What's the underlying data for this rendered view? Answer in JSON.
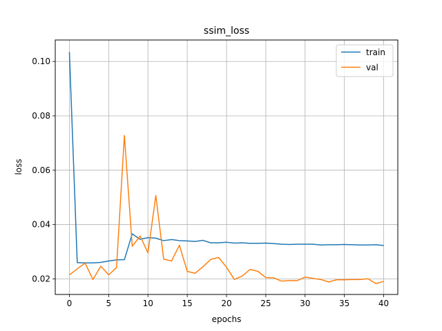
{
  "chart_data": {
    "type": "line",
    "title": "ssim_loss",
    "xlabel": "epochs",
    "ylabel": "loss",
    "xlim": [
      -1.8,
      41.8
    ],
    "ylim": [
      0.0143,
      0.1079
    ],
    "xticks": [
      0,
      5,
      10,
      15,
      20,
      25,
      30,
      35,
      40
    ],
    "yticks": [
      0.02,
      0.04,
      0.06,
      0.08,
      0.1
    ],
    "ytick_labels": [
      "0.02",
      "0.04",
      "0.06",
      "0.08",
      "0.10"
    ],
    "grid": true,
    "legend_position": "top-right",
    "x": [
      0,
      1,
      2,
      3,
      4,
      5,
      6,
      7,
      8,
      9,
      10,
      11,
      12,
      13,
      14,
      15,
      16,
      17,
      18,
      19,
      20,
      21,
      22,
      23,
      24,
      25,
      26,
      27,
      28,
      29,
      30,
      31,
      32,
      33,
      34,
      35,
      36,
      37,
      38,
      39,
      40
    ],
    "series": [
      {
        "name": "train",
        "color": "#1f77b4",
        "values": [
          0.1035,
          0.026,
          0.0259,
          0.0259,
          0.0261,
          0.0266,
          0.027,
          0.0271,
          0.0366,
          0.0346,
          0.0352,
          0.035,
          0.0341,
          0.0345,
          0.0341,
          0.034,
          0.0338,
          0.0342,
          0.0333,
          0.0333,
          0.0335,
          0.0332,
          0.0333,
          0.0331,
          0.0331,
          0.0332,
          0.033,
          0.0328,
          0.0327,
          0.0328,
          0.0328,
          0.0328,
          0.0325,
          0.0326,
          0.0326,
          0.0327,
          0.0326,
          0.0325,
          0.0325,
          0.0326,
          0.0323
        ]
      },
      {
        "name": "val",
        "color": "#ff7f0e",
        "values": [
          0.0215,
          0.0237,
          0.0258,
          0.0198,
          0.0247,
          0.0215,
          0.0242,
          0.0728,
          0.032,
          0.0358,
          0.0296,
          0.0507,
          0.0273,
          0.0266,
          0.0324,
          0.0228,
          0.0221,
          0.0245,
          0.0272,
          0.0279,
          0.0243,
          0.0198,
          0.0211,
          0.0235,
          0.0228,
          0.0205,
          0.0204,
          0.0192,
          0.0194,
          0.0194,
          0.0207,
          0.0202,
          0.0198,
          0.0189,
          0.0197,
          0.0197,
          0.0198,
          0.0198,
          0.0201,
          0.0183,
          0.0191
        ]
      }
    ]
  }
}
